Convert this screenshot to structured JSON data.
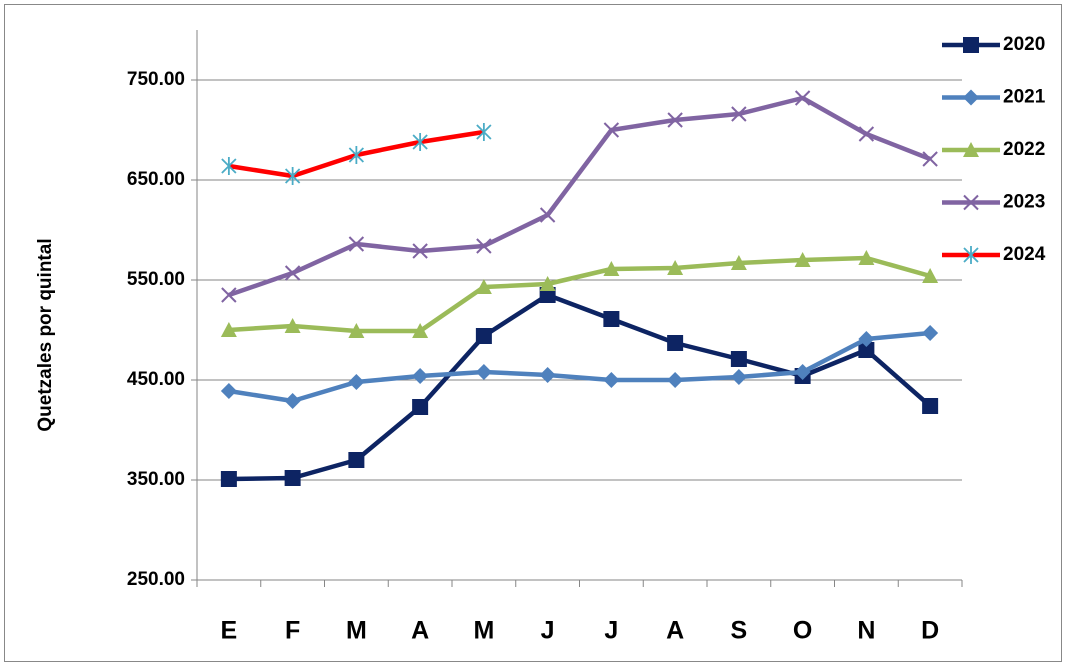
{
  "chart_data": {
    "type": "line",
    "y_label": "Quetzales por quintal",
    "categories": [
      "E",
      "F",
      "M",
      "A",
      "M",
      "J",
      "J",
      "A",
      "S",
      "O",
      "N",
      "D"
    ],
    "ylim": [
      250,
      800
    ],
    "yticks": [
      {
        "value": 250,
        "label": "250.00"
      },
      {
        "value": 350,
        "label": "350.00"
      },
      {
        "value": 450,
        "label": "450.00"
      },
      {
        "value": 550,
        "label": "550.00"
      },
      {
        "value": 650,
        "label": "650.00"
      },
      {
        "value": 750,
        "label": "750.00"
      }
    ],
    "grid": true,
    "legend": "right",
    "series": [
      {
        "name": "2020",
        "color": "#0d2463",
        "marker": "square",
        "values": [
          351,
          352,
          370,
          423,
          494,
          535,
          511,
          487,
          471,
          454,
          480,
          424
        ]
      },
      {
        "name": "2021",
        "color": "#4f81bd",
        "marker": "diamond",
        "values": [
          439,
          429,
          448,
          454,
          458,
          455,
          450,
          450,
          453,
          458,
          491,
          497
        ]
      },
      {
        "name": "2022",
        "color": "#9bbb59",
        "marker": "triangle",
        "values": [
          500,
          504,
          499,
          499,
          543,
          546,
          561,
          562,
          567,
          570,
          572,
          554
        ]
      },
      {
        "name": "2023",
        "color": "#8064a2",
        "marker": "x",
        "values": [
          535,
          557,
          586,
          579,
          584,
          615,
          700,
          710,
          716,
          732,
          696,
          671
        ]
      },
      {
        "name": "2024",
        "color": "#ff0000",
        "marker": "star",
        "marker_color": "#4bacc6",
        "values": [
          664,
          654,
          675,
          688,
          698,
          null,
          null,
          null,
          null,
          null,
          null,
          null
        ]
      }
    ]
  }
}
